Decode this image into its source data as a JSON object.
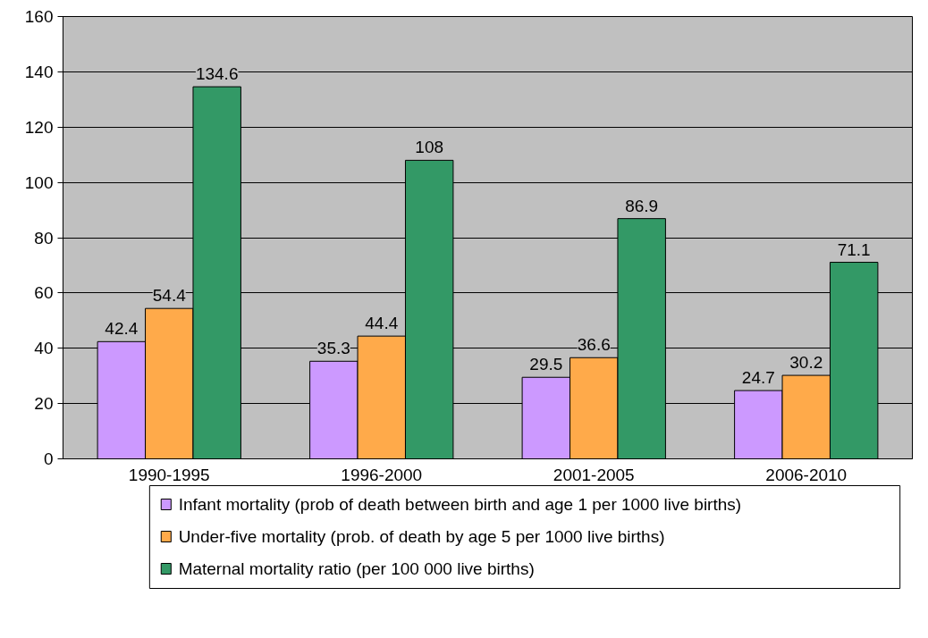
{
  "chart_data": {
    "type": "bar",
    "categories": [
      "1990-1995",
      "1996-2000",
      "2001-2005",
      "2006-2010"
    ],
    "series": [
      {
        "name": "Infant mortality (prob of death between birth and age 1 per 1000 live births)",
        "color": "#cc99ff",
        "values": [
          42.4,
          35.3,
          29.5,
          24.7
        ]
      },
      {
        "name": "Under-five mortality (prob. of death by age 5 per 1000 live births)",
        "color": "#ffaa4a",
        "values": [
          54.4,
          44.4,
          36.6,
          30.2
        ]
      },
      {
        "name": "Maternal mortality ratio (per 100 000 live births)",
        "color": "#339966",
        "values": [
          134.6,
          108,
          86.9,
          71.1
        ]
      }
    ],
    "ylim": [
      0,
      160
    ],
    "yticks": [
      0,
      20,
      40,
      60,
      80,
      100,
      120,
      140,
      160
    ],
    "grid": "y",
    "legend": "bottom",
    "data_labels": true
  }
}
